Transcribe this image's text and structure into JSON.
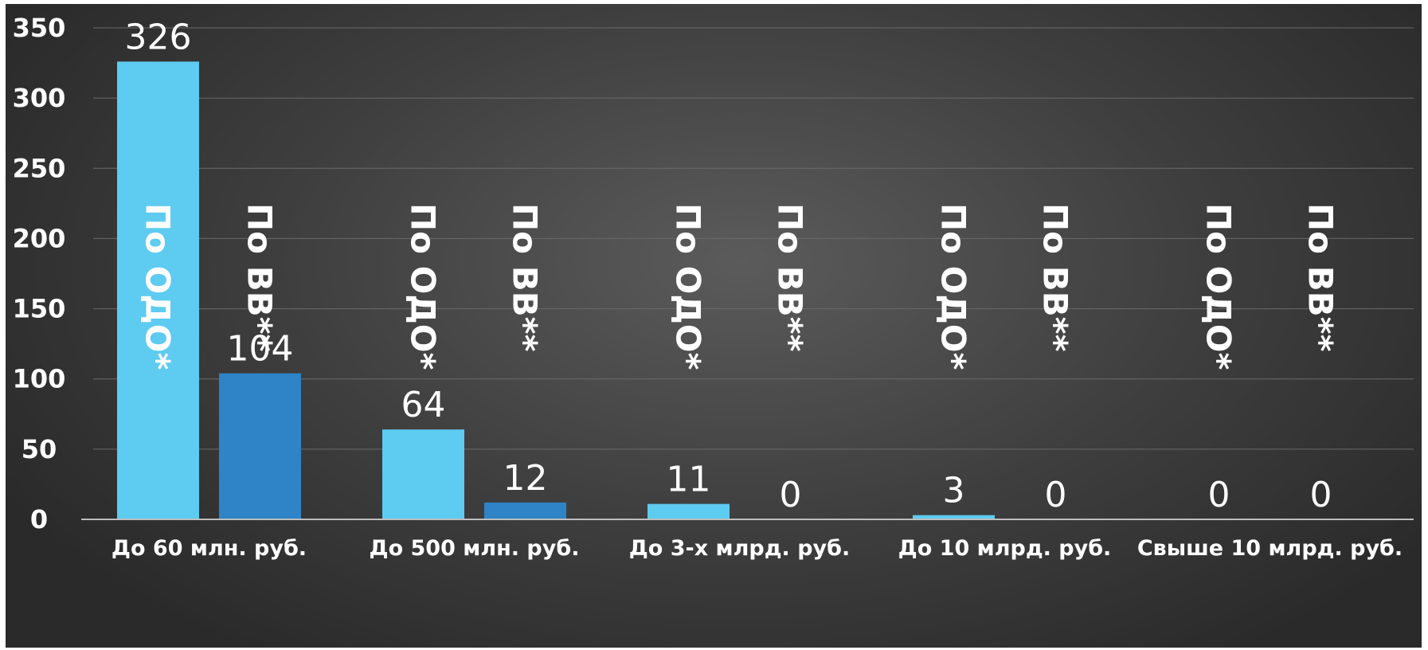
{
  "chart_data": {
    "type": "bar",
    "categories": [
      "До 60 млн. руб.",
      "До 500 млн. руб.",
      "До 3-х млрд. руб.",
      "До 10 млрд. руб.",
      "Свыше 10 млрд. руб."
    ],
    "series": [
      {
        "name": "По ОДО*",
        "values": [
          326,
          64,
          11,
          3,
          0
        ],
        "color": "#5ecbf0"
      },
      {
        "name": "По ВВ**",
        "values": [
          104,
          12,
          0,
          0,
          0
        ],
        "color": "#2e84c6"
      }
    ],
    "ylim": [
      0,
      350
    ],
    "yticks": [
      0,
      50,
      100,
      150,
      200,
      250,
      300,
      350
    ],
    "grid": true,
    "legend": "none",
    "label_color": "#ffffff"
  }
}
